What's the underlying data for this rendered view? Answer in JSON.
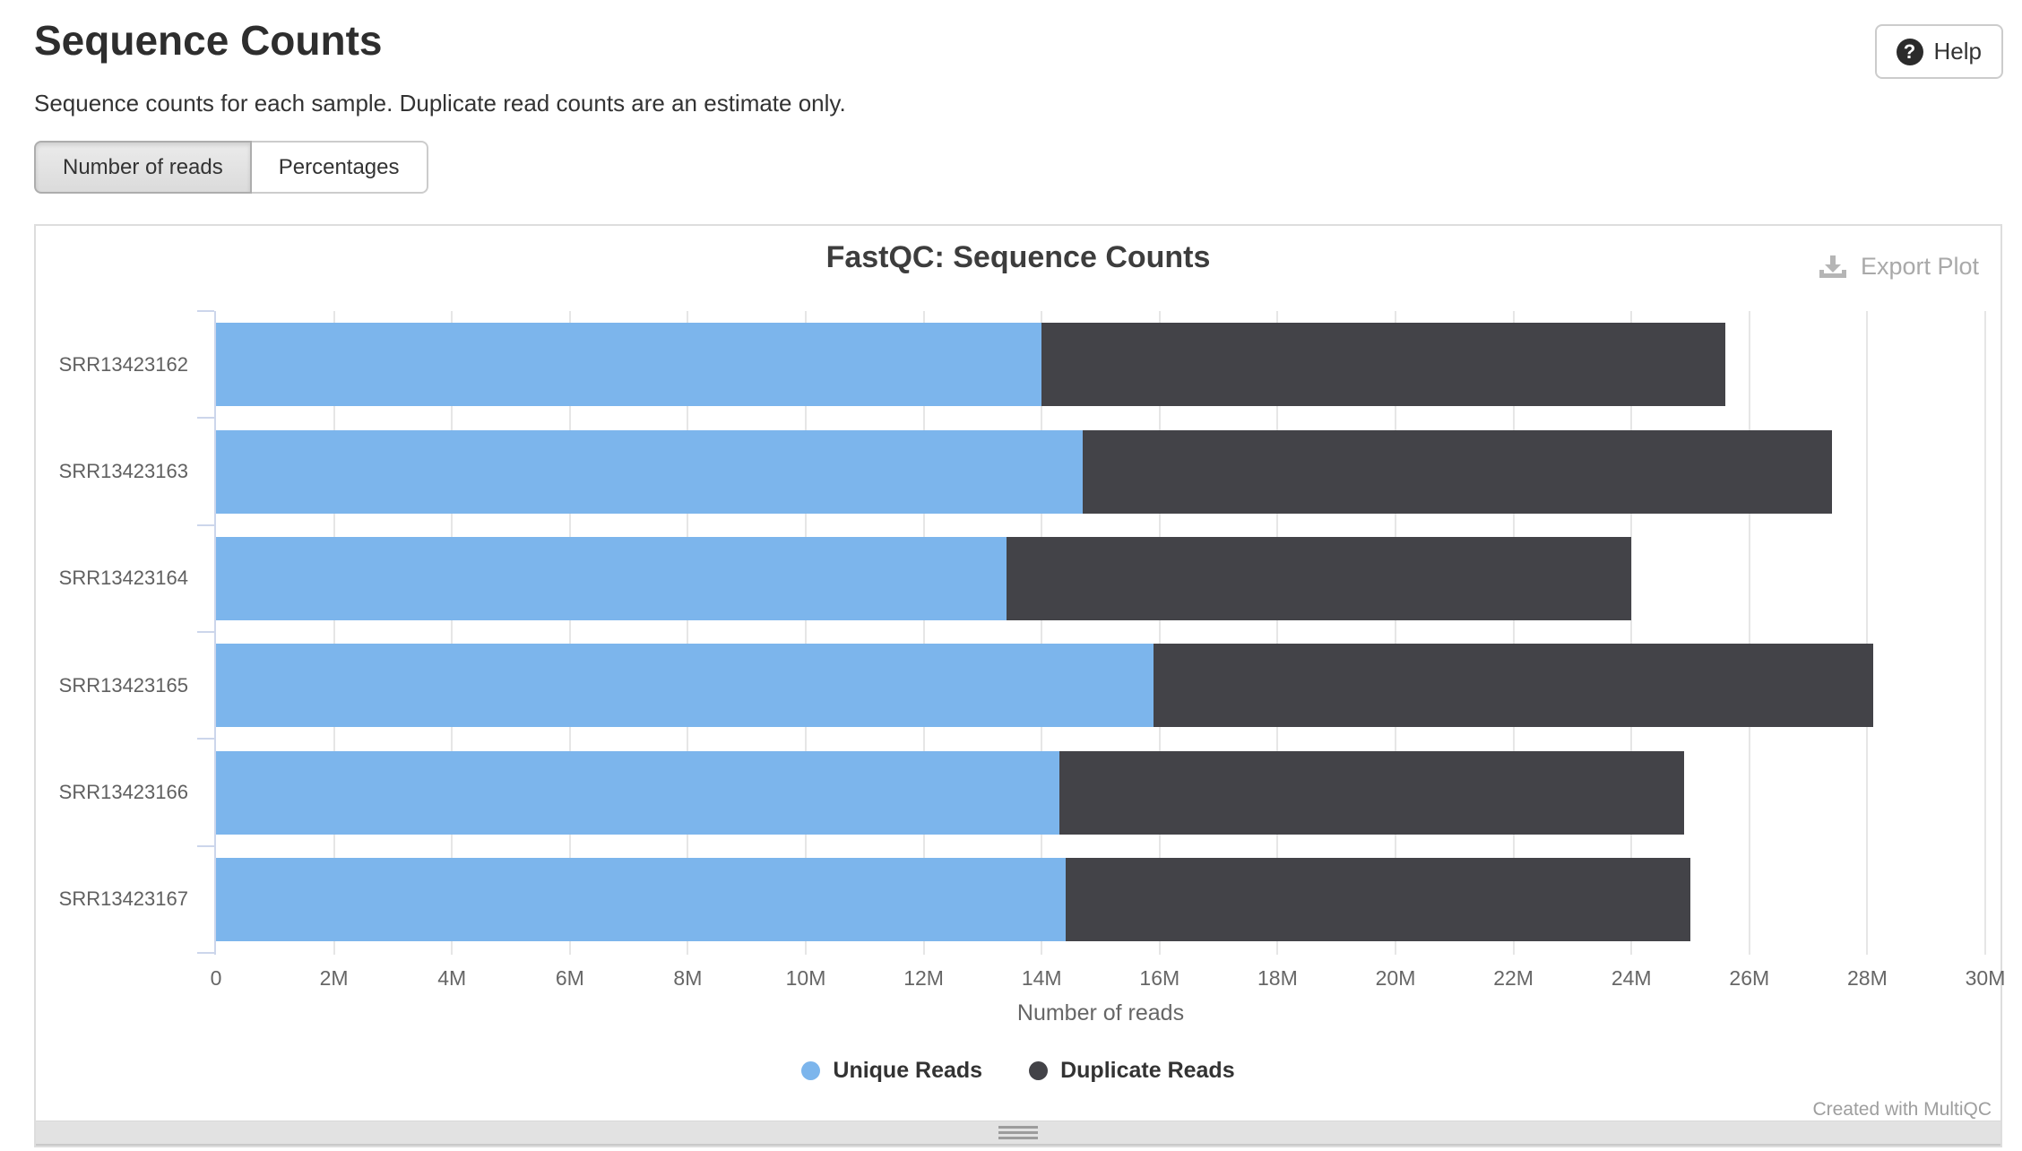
{
  "header": {
    "title": "Sequence Counts",
    "description": "Sequence counts for each sample. Duplicate read counts are an estimate only.",
    "help_label": "Help",
    "help_icon": "?"
  },
  "toolbar": {
    "buttons": [
      {
        "label": "Number of reads",
        "active": true
      },
      {
        "label": "Percentages",
        "active": false
      }
    ]
  },
  "plot_panel": {
    "export_label": "Export Plot",
    "watermark": "Created with MultiQC"
  },
  "chart_data": {
    "type": "bar",
    "orientation": "horizontal",
    "stacked": true,
    "title": "FastQC: Sequence Counts",
    "xlabel": "Number of reads",
    "categories": [
      "SRR13423162",
      "SRR13423163",
      "SRR13423164",
      "SRR13423165",
      "SRR13423166",
      "SRR13423167"
    ],
    "series": [
      {
        "name": "Unique Reads",
        "color": "#7cb5ec",
        "values_millions": [
          14.0,
          14.7,
          13.4,
          15.9,
          14.3,
          14.4
        ]
      },
      {
        "name": "Duplicate Reads",
        "color": "#434348",
        "values_millions": [
          11.6,
          12.7,
          10.6,
          12.2,
          10.6,
          10.6
        ]
      }
    ],
    "totals_millions": [
      25.6,
      27.4,
      24.0,
      28.1,
      24.9,
      25.0
    ],
    "xlim_millions": [
      0,
      30
    ],
    "x_tick_step_millions": 2,
    "x_tick_labels": [
      "0",
      "2M",
      "4M",
      "6M",
      "8M",
      "10M",
      "12M",
      "14M",
      "16M",
      "18M",
      "20M",
      "22M",
      "24M",
      "26M",
      "28M",
      "30M"
    ],
    "grid": true,
    "legend_position": "bottom",
    "axis_color": "#ccd6eb",
    "grid_color": "#e6e6e6"
  }
}
